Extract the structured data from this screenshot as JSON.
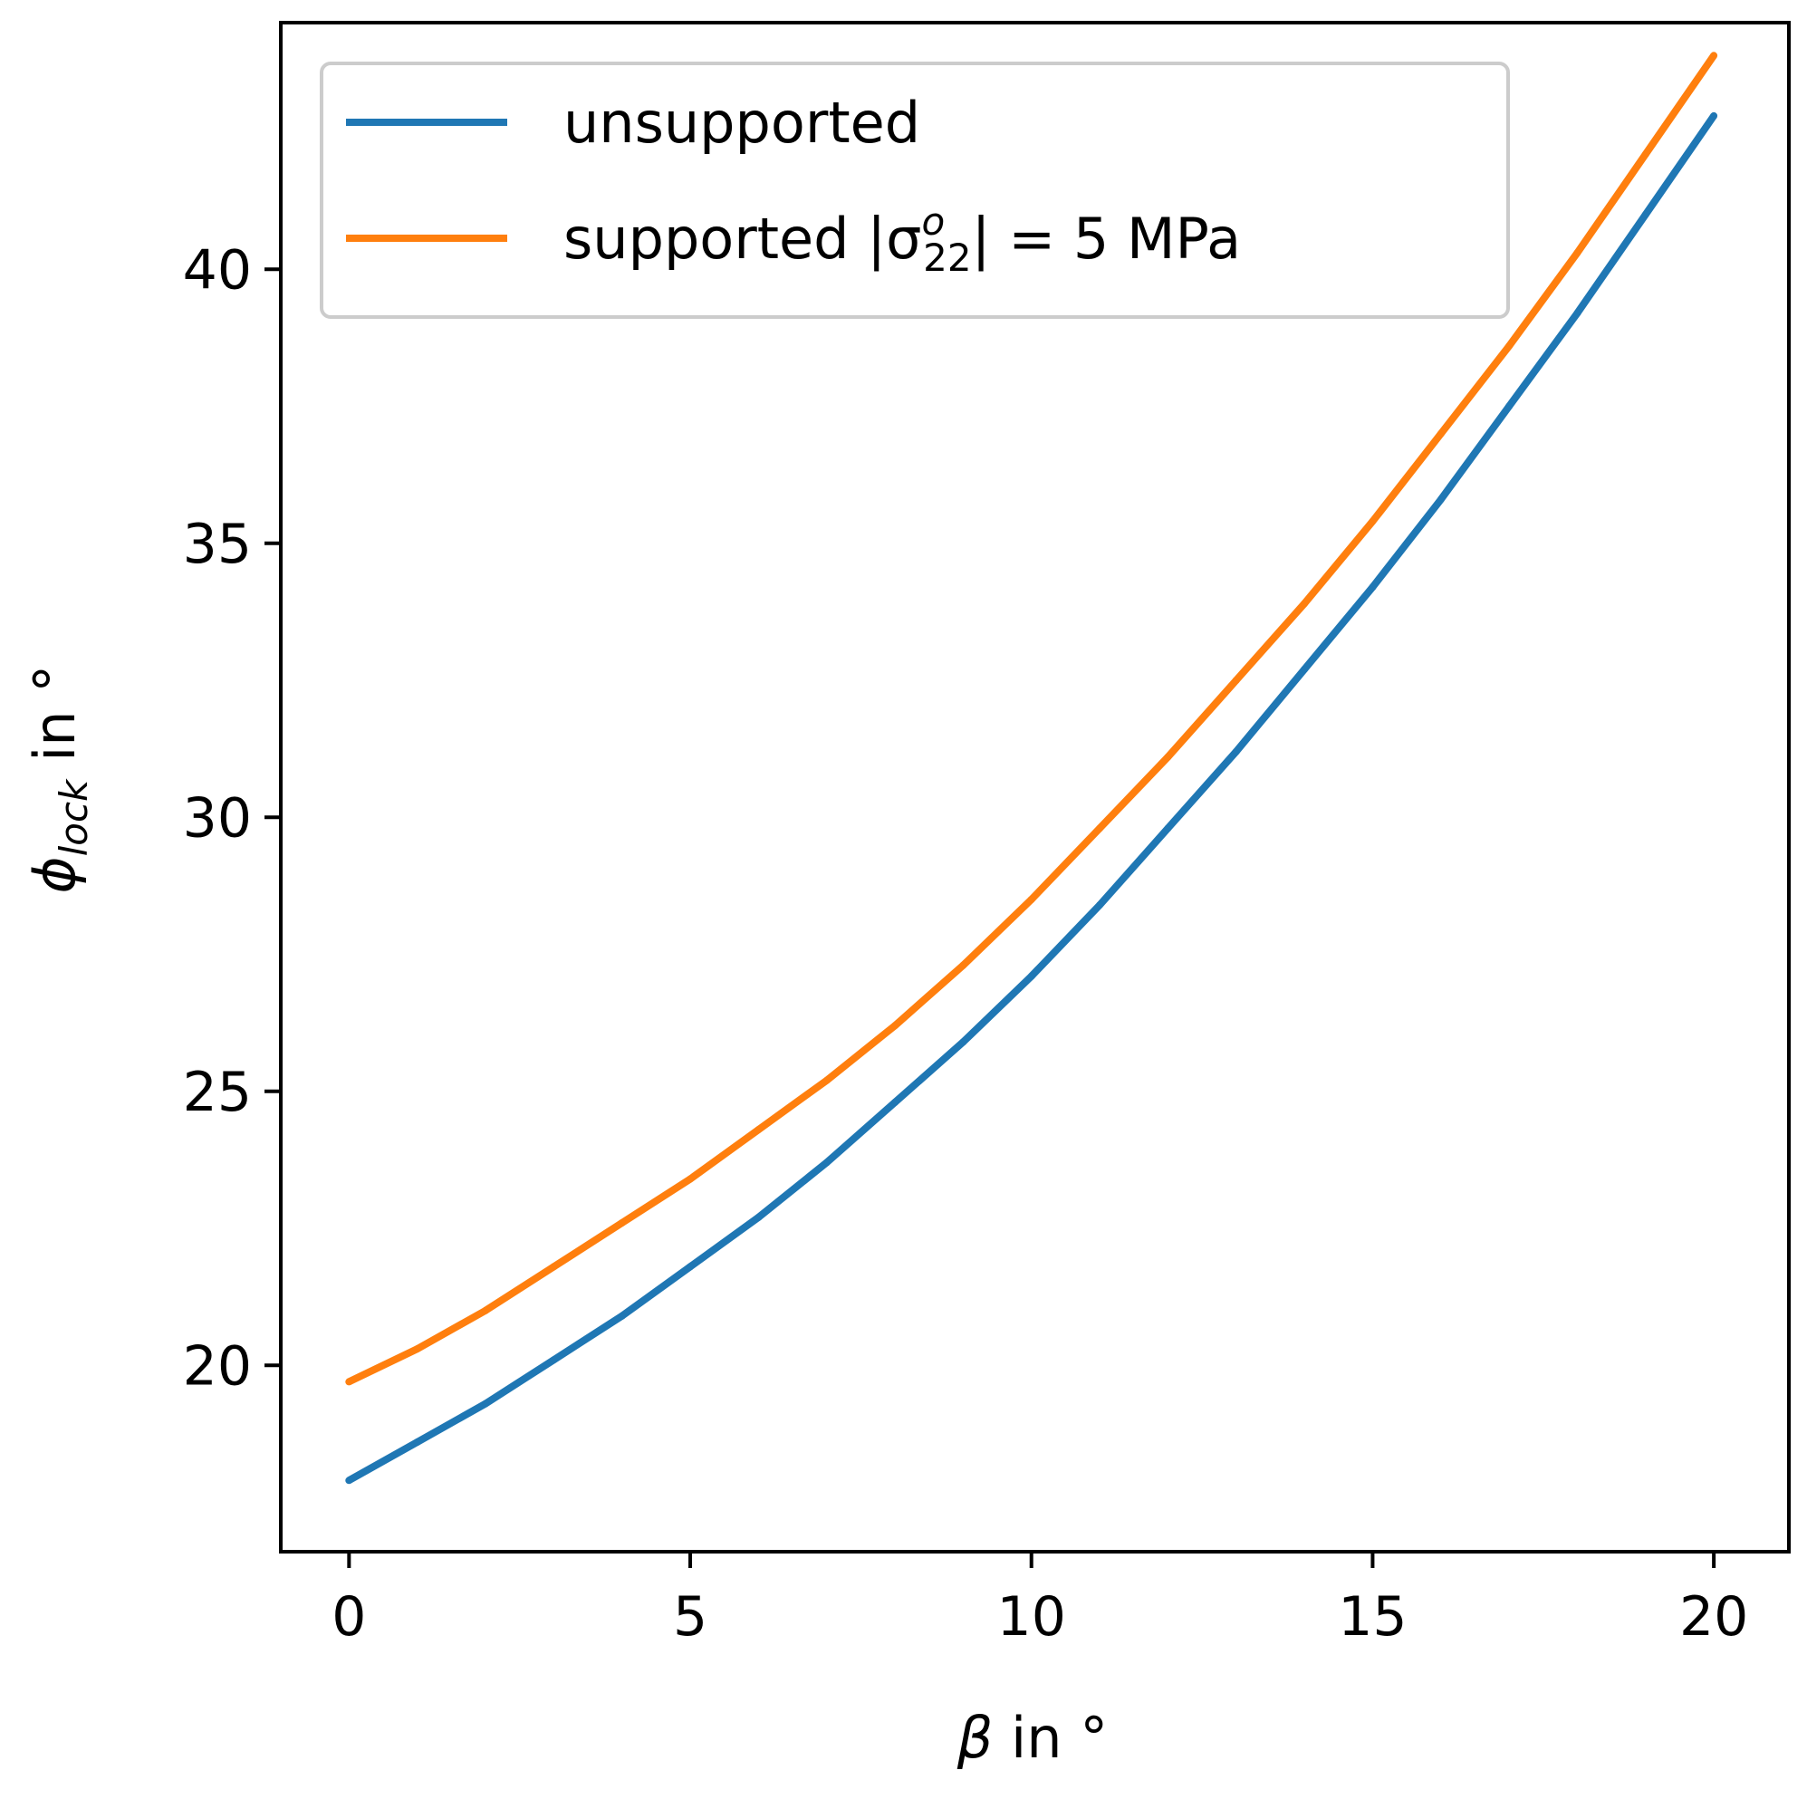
{
  "chart_data": {
    "type": "line",
    "xlabel": "β in °",
    "ylabel": "ϕ_lock in °",
    "xlim": [
      -1,
      21.1
    ],
    "ylim": [
      16.6,
      44.5
    ],
    "xticks": [
      0,
      5,
      10,
      15,
      20
    ],
    "yticks": [
      20,
      25,
      30,
      35,
      40
    ],
    "grid": false,
    "legend_position": "upper-left",
    "series": [
      {
        "name": "unsupported",
        "color": "#1f77b4",
        "x": [
          0,
          1,
          2,
          3,
          4,
          5,
          6,
          7,
          8,
          9,
          10,
          11,
          12,
          13,
          14,
          15,
          16,
          17,
          18,
          19,
          20
        ],
        "y": [
          17.9,
          18.6,
          19.3,
          20.1,
          20.9,
          21.8,
          22.7,
          23.7,
          24.8,
          25.9,
          27.1,
          28.4,
          29.8,
          31.2,
          32.7,
          34.2,
          35.8,
          37.5,
          39.2,
          41.0,
          42.8
        ]
      },
      {
        "name": "supported |σ°22| = 5 MPa",
        "name_parts": {
          "prefix": "supported |σ",
          "sup": "o",
          "sub": "22",
          "suffix": "| = 5 MPa"
        },
        "color": "#ff7f0e",
        "x": [
          0,
          1,
          2,
          3,
          4,
          5,
          6,
          7,
          8,
          9,
          10,
          11,
          12,
          13,
          14,
          15,
          16,
          17,
          18,
          19,
          20
        ],
        "y": [
          19.7,
          20.3,
          21.0,
          21.8,
          22.6,
          23.4,
          24.3,
          25.2,
          26.2,
          27.3,
          28.5,
          29.8,
          31.1,
          32.5,
          33.9,
          35.4,
          37.0,
          38.6,
          40.3,
          42.1,
          43.9
        ]
      }
    ]
  }
}
